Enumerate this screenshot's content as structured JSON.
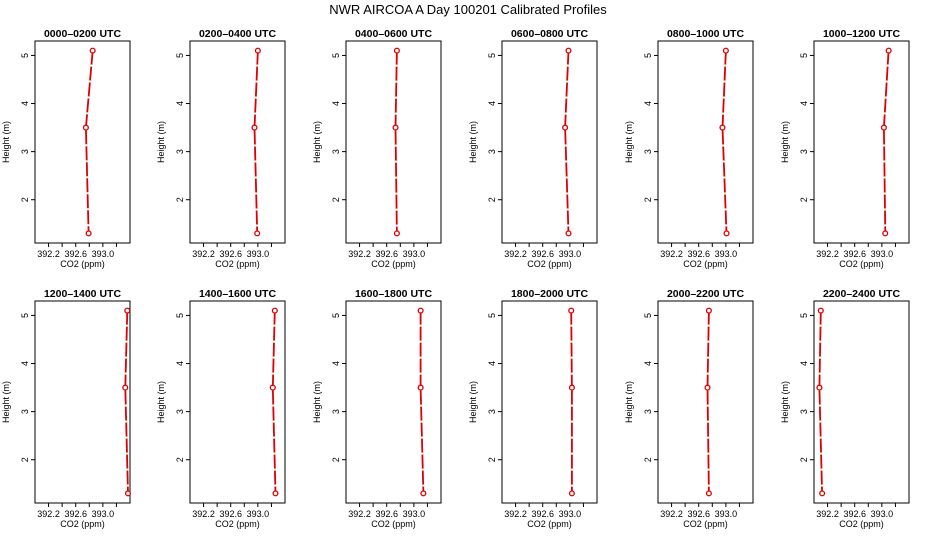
{
  "title": "NWR AIRCOA A  Day 100201  Calibrated Profiles",
  "chart_data": [
    {
      "type": "line",
      "title": "0000–0200 UTC",
      "xlabel": "CO2 (ppm)",
      "ylabel": "Height (m)",
      "xlim": [
        392.0,
        393.4
      ],
      "ylim": [
        1.1,
        5.3
      ],
      "xticks": [
        "392.2",
        "392.6",
        "393.0"
      ],
      "yticks": [
        "2",
        "3",
        "4",
        "5"
      ],
      "series": [
        {
          "x": [
            392.85,
            392.75,
            392.79
          ],
          "y": [
            5.1,
            3.5,
            1.3
          ]
        }
      ]
    },
    {
      "type": "line",
      "title": "0200–0400 UTC",
      "xlabel": "CO2 (ppm)",
      "ylabel": "Height (m)",
      "xlim": [
        392.0,
        393.4
      ],
      "ylim": [
        1.1,
        5.3
      ],
      "xticks": [
        "392.2",
        "392.6",
        "393.0"
      ],
      "yticks": [
        "2",
        "3",
        "4",
        "5"
      ],
      "series": [
        {
          "x": [
            393.0,
            392.95,
            392.99
          ],
          "y": [
            5.1,
            3.5,
            1.3
          ]
        }
      ]
    },
    {
      "type": "line",
      "title": "0400–0600 UTC",
      "xlabel": "CO2 (ppm)",
      "ylabel": "Height (m)",
      "xlim": [
        392.0,
        393.4
      ],
      "ylim": [
        1.1,
        5.3
      ],
      "xticks": [
        "392.2",
        "392.6",
        "393.0"
      ],
      "yticks": [
        "2",
        "3",
        "4",
        "5"
      ],
      "series": [
        {
          "x": [
            392.75,
            392.73,
            392.75
          ],
          "y": [
            5.1,
            3.5,
            1.3
          ]
        }
      ]
    },
    {
      "type": "line",
      "title": "0600–0800 UTC",
      "xlabel": "CO2 (ppm)",
      "ylabel": "Height (m)",
      "xlim": [
        392.0,
        393.4
      ],
      "ylim": [
        1.1,
        5.3
      ],
      "xticks": [
        "392.2",
        "392.6",
        "393.0"
      ],
      "yticks": [
        "2",
        "3",
        "4",
        "5"
      ],
      "series": [
        {
          "x": [
            392.98,
            392.93,
            392.98
          ],
          "y": [
            5.1,
            3.5,
            1.3
          ]
        }
      ]
    },
    {
      "type": "line",
      "title": "0800–1000 UTC",
      "xlabel": "CO2 (ppm)",
      "ylabel": "Height (m)",
      "xlim": [
        392.0,
        393.4
      ],
      "ylim": [
        1.1,
        5.3
      ],
      "xticks": [
        "392.2",
        "392.6",
        "393.0"
      ],
      "yticks": [
        "2",
        "3",
        "4",
        "5"
      ],
      "series": [
        {
          "x": [
            393.0,
            392.95,
            393.01
          ],
          "y": [
            5.1,
            3.5,
            1.3
          ]
        }
      ]
    },
    {
      "type": "line",
      "title": "1000–1200 UTC",
      "xlabel": "CO2 (ppm)",
      "ylabel": "Height (m)",
      "xlim": [
        392.0,
        393.4
      ],
      "ylim": [
        1.1,
        5.3
      ],
      "xticks": [
        "392.2",
        "392.6",
        "393.0"
      ],
      "yticks": [
        "2",
        "3",
        "4",
        "5"
      ],
      "series": [
        {
          "x": [
            393.1,
            393.03,
            393.05
          ],
          "y": [
            5.1,
            3.5,
            1.3
          ]
        }
      ]
    },
    {
      "type": "line",
      "title": "1200–1400 UTC",
      "xlabel": "CO2 (ppm)",
      "ylabel": "Height (m)",
      "xlim": [
        392.0,
        393.4
      ],
      "ylim": [
        1.1,
        5.3
      ],
      "xticks": [
        "392.2",
        "392.6",
        "393.0"
      ],
      "yticks": [
        "2",
        "3",
        "4",
        "5"
      ],
      "series": [
        {
          "x": [
            393.36,
            393.33,
            393.37
          ],
          "y": [
            5.1,
            3.5,
            1.3
          ]
        }
      ]
    },
    {
      "type": "line",
      "title": "1400–1600 UTC",
      "xlabel": "CO2 (ppm)",
      "ylabel": "Height (m)",
      "xlim": [
        392.0,
        393.4
      ],
      "ylim": [
        1.1,
        5.3
      ],
      "xticks": [
        "392.2",
        "392.6",
        "393.0"
      ],
      "yticks": [
        "2",
        "3",
        "4",
        "5"
      ],
      "series": [
        {
          "x": [
            393.25,
            393.22,
            393.26
          ],
          "y": [
            5.1,
            3.5,
            1.3
          ]
        }
      ]
    },
    {
      "type": "line",
      "title": "1600–1800 UTC",
      "xlabel": "CO2 (ppm)",
      "ylabel": "Height (m)",
      "xlim": [
        392.0,
        393.4
      ],
      "ylim": [
        1.1,
        5.3
      ],
      "xticks": [
        "392.2",
        "392.6",
        "393.0"
      ],
      "yticks": [
        "2",
        "3",
        "4",
        "5"
      ],
      "series": [
        {
          "x": [
            393.1,
            393.1,
            393.14
          ],
          "y": [
            5.1,
            3.5,
            1.3
          ]
        }
      ]
    },
    {
      "type": "line",
      "title": "1800–2000 UTC",
      "xlabel": "CO2 (ppm)",
      "ylabel": "Height (m)",
      "xlim": [
        392.0,
        393.4
      ],
      "ylim": [
        1.1,
        5.3
      ],
      "xticks": [
        "392.2",
        "392.6",
        "393.0"
      ],
      "yticks": [
        "2",
        "3",
        "4",
        "5"
      ],
      "series": [
        {
          "x": [
            393.02,
            393.03,
            393.03
          ],
          "y": [
            5.1,
            3.5,
            1.3
          ]
        }
      ]
    },
    {
      "type": "line",
      "title": "2000–2200 UTC",
      "xlabel": "CO2 (ppm)",
      "ylabel": "Height (m)",
      "xlim": [
        392.0,
        393.4
      ],
      "ylim": [
        1.1,
        5.3
      ],
      "xticks": [
        "392.2",
        "392.6",
        "393.0"
      ],
      "yticks": [
        "2",
        "3",
        "4",
        "5"
      ],
      "series": [
        {
          "x": [
            392.75,
            392.73,
            392.75
          ],
          "y": [
            5.1,
            3.5,
            1.3
          ]
        }
      ]
    },
    {
      "type": "line",
      "title": "2200–2400 UTC",
      "xlabel": "CO2 (ppm)",
      "ylabel": "Height (m)",
      "xlim": [
        392.0,
        393.4
      ],
      "ylim": [
        1.1,
        5.3
      ],
      "xticks": [
        "392.2",
        "392.6",
        "393.0"
      ],
      "yticks": [
        "2",
        "3",
        "4",
        "5"
      ],
      "series": [
        {
          "x": [
            392.1,
            392.08,
            392.12
          ],
          "y": [
            5.1,
            3.5,
            1.3
          ]
        }
      ]
    }
  ],
  "colors": {
    "line": "#dd0000",
    "marker": "#dd0000",
    "axis": "#000000"
  }
}
